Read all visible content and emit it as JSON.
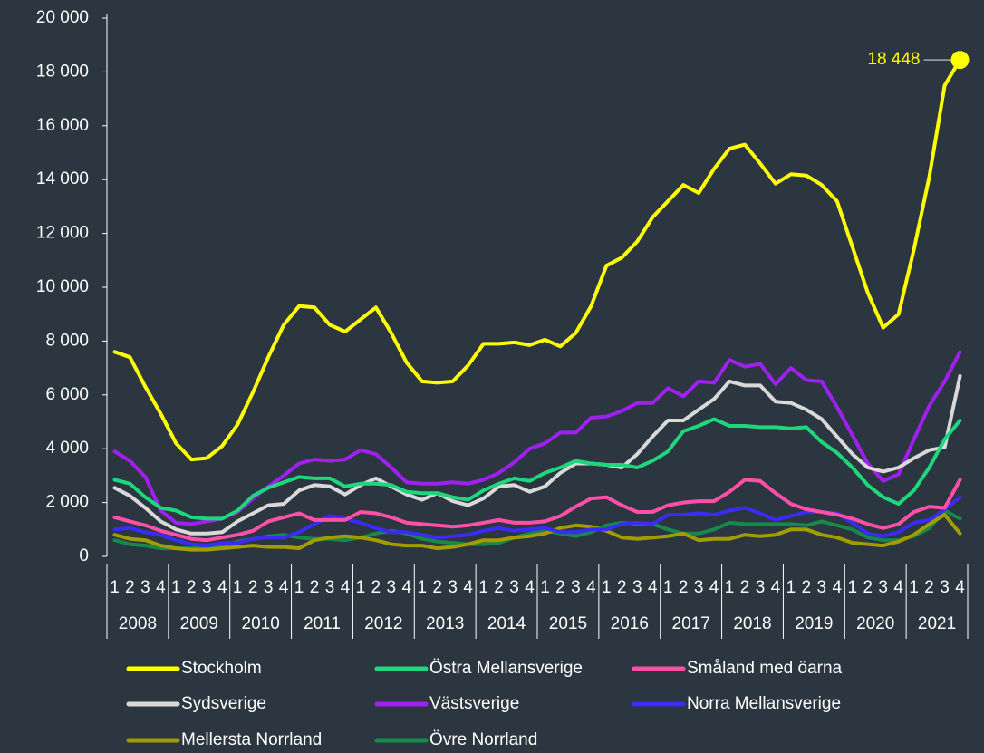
{
  "chart_data": {
    "type": "line",
    "categories": [
      "1",
      "2",
      "3",
      "4",
      "1",
      "2",
      "3",
      "4",
      "1",
      "2",
      "3",
      "4",
      "1",
      "2",
      "3",
      "4",
      "1",
      "2",
      "3",
      "4",
      "1",
      "2",
      "3",
      "4",
      "1",
      "2",
      "3",
      "4",
      "1",
      "2",
      "3",
      "4",
      "1",
      "2",
      "3",
      "4",
      "1",
      "2",
      "3",
      "4",
      "1",
      "2",
      "3",
      "4",
      "1",
      "2",
      "3",
      "4",
      "1",
      "2",
      "3",
      "4",
      "1",
      "2",
      "3",
      "4"
    ],
    "year_labels": [
      "2008",
      "2009",
      "2010",
      "2011",
      "2012",
      "2013",
      "2014",
      "2015",
      "2016",
      "2017",
      "2018",
      "2019",
      "2020",
      "2021"
    ],
    "ylim": [
      0,
      20000
    ],
    "yticks": [
      0,
      {
        "value": 2000,
        "label": "2 000"
      },
      {
        "value": 4000,
        "label": "4 000"
      },
      {
        "value": 6000,
        "label": "6 000"
      },
      {
        "value": 8000,
        "label": "8 000"
      },
      {
        "value": 10000,
        "label": "10 000"
      },
      {
        "value": 12000,
        "label": "12 000"
      },
      {
        "value": 14000,
        "label": "14 000"
      },
      {
        "value": 16000,
        "label": "16 000"
      },
      {
        "value": 18000,
        "label": "18 000"
      },
      {
        "value": 20000,
        "label": "20 000"
      }
    ],
    "grid": false,
    "legend": "bottom",
    "annotations": [
      {
        "text": "18 448"
      }
    ],
    "series": [
      {
        "name": "Stockholm",
        "color": "#ffff00",
        "values": [
          7600,
          7400,
          6300,
          5300,
          4200,
          3600,
          3650,
          4100,
          4900,
          6100,
          7400,
          8600,
          9300,
          9250,
          8600,
          8350,
          8800,
          9250,
          8300,
          7200,
          6500,
          6450,
          6500,
          7100,
          7900,
          7900,
          7950,
          7850,
          8050,
          7800,
          8300,
          9300,
          10800,
          11100,
          11700,
          12600,
          13200,
          13800,
          13500,
          14400,
          15150,
          15300,
          14600,
          13850,
          14200,
          14150,
          13800,
          13200,
          11500,
          9800,
          8500,
          9000,
          11400,
          14100,
          17500,
          18448
        ]
      },
      {
        "name": "Östra Mellansverige",
        "color": "#1ed67c",
        "values": [
          2850,
          2700,
          2200,
          1800,
          1700,
          1450,
          1400,
          1400,
          1700,
          2250,
          2550,
          2750,
          2950,
          2900,
          2900,
          2600,
          2700,
          2700,
          2650,
          2400,
          2350,
          2350,
          2200,
          2100,
          2450,
          2700,
          2900,
          2800,
          3100,
          3300,
          3550,
          3450,
          3400,
          3400,
          3300,
          3550,
          3900,
          4650,
          4850,
          5100,
          4850,
          4850,
          4800,
          4800,
          4750,
          4800,
          4250,
          3850,
          3300,
          2650,
          2200,
          1950,
          2450,
          3300,
          4350,
          5050
        ]
      },
      {
        "name": "Småland med öarna",
        "color": "#ff4fa8",
        "values": [
          1450,
          1300,
          1150,
          950,
          800,
          650,
          600,
          700,
          800,
          950,
          1300,
          1450,
          1600,
          1350,
          1350,
          1350,
          1650,
          1600,
          1450,
          1250,
          1200,
          1150,
          1100,
          1150,
          1250,
          1350,
          1250,
          1250,
          1300,
          1500,
          1850,
          2150,
          2200,
          1900,
          1650,
          1650,
          1900,
          2000,
          2050,
          2050,
          2400,
          2850,
          2800,
          2350,
          1950,
          1750,
          1650,
          1550,
          1400,
          1200,
          1050,
          1200,
          1650,
          1850,
          1800,
          2850
        ]
      },
      {
        "name": "Sydsverige",
        "color": "#d9d9d9",
        "values": [
          2550,
          2250,
          1800,
          1300,
          1000,
          850,
          850,
          900,
          1300,
          1600,
          1900,
          1950,
          2450,
          2650,
          2600,
          2300,
          2650,
          2900,
          2600,
          2300,
          2100,
          2350,
          2050,
          1900,
          2150,
          2600,
          2650,
          2400,
          2600,
          3100,
          3450,
          3450,
          3400,
          3300,
          3800,
          4450,
          5050,
          5050,
          5450,
          5850,
          6500,
          6350,
          6350,
          5750,
          5700,
          5450,
          5100,
          4450,
          3800,
          3300,
          3150,
          3300,
          3650,
          3950,
          4050,
          6700
        ]
      },
      {
        "name": "Västsverige",
        "color": "#a020f0",
        "values": [
          3900,
          3550,
          2950,
          1700,
          1250,
          1200,
          1300,
          1400,
          1650,
          2150,
          2600,
          3000,
          3450,
          3600,
          3550,
          3600,
          3950,
          3800,
          3300,
          2750,
          2700,
          2700,
          2750,
          2700,
          2850,
          3100,
          3500,
          4000,
          4200,
          4600,
          4600,
          5150,
          5200,
          5400,
          5700,
          5700,
          6250,
          5950,
          6500,
          6450,
          7300,
          7050,
          7150,
          6400,
          7000,
          6550,
          6500,
          5550,
          4500,
          3450,
          2800,
          3050,
          4350,
          5600,
          6500,
          7600
        ]
      },
      {
        "name": "Norra Mellansverige",
        "color": "#3a2cf5",
        "values": [
          1000,
          1050,
          900,
          800,
          600,
          450,
          400,
          500,
          500,
          650,
          700,
          700,
          900,
          1200,
          1500,
          1400,
          1250,
          1050,
          900,
          900,
          800,
          700,
          750,
          800,
          950,
          1050,
          950,
          1000,
          1050,
          900,
          900,
          1000,
          1000,
          1200,
          1250,
          1200,
          1550,
          1550,
          1600,
          1550,
          1700,
          1800,
          1600,
          1350,
          1500,
          1650,
          1650,
          1600,
          1250,
          850,
          750,
          900,
          1250,
          1350,
          1750,
          2200
        ]
      },
      {
        "name": "Mellersta Norrland",
        "color": "#a39c00",
        "values": [
          800,
          650,
          600,
          400,
          300,
          250,
          250,
          300,
          350,
          400,
          350,
          350,
          300,
          600,
          700,
          750,
          700,
          600,
          450,
          400,
          400,
          300,
          350,
          450,
          600,
          600,
          700,
          750,
          850,
          1050,
          1150,
          1100,
          950,
          700,
          650,
          700,
          750,
          850,
          600,
          650,
          650,
          800,
          750,
          800,
          1000,
          1000,
          800,
          700,
          500,
          450,
          400,
          550,
          800,
          1200,
          1550,
          850
        ]
      },
      {
        "name": "Övre Norrland",
        "color": "#16894b",
        "values": [
          600,
          450,
          400,
          300,
          300,
          300,
          350,
          400,
          550,
          650,
          750,
          800,
          700,
          650,
          650,
          600,
          700,
          850,
          950,
          850,
          650,
          550,
          500,
          450,
          450,
          500,
          700,
          850,
          950,
          850,
          750,
          900,
          1150,
          1250,
          1200,
          1200,
          1000,
          850,
          850,
          1000,
          1250,
          1200,
          1200,
          1200,
          1200,
          1150,
          1300,
          1150,
          1000,
          700,
          600,
          600,
          750,
          1050,
          1700,
          1400
        ]
      }
    ]
  }
}
